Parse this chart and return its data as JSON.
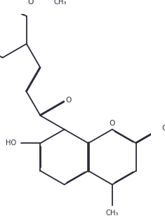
{
  "bg_color": "#ffffff",
  "line_color": "#2a2a3a",
  "line_width": 1.3,
  "dbo": 0.008,
  "figsize": [
    2.35,
    3.11
  ],
  "dpi": 100,
  "font_size": 7.2,
  "r_hex": 0.082,
  "xlim": [
    0,
    2.35
  ],
  "ylim": [
    0,
    3.11
  ]
}
